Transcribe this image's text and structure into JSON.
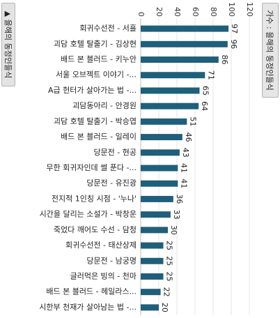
{
  "chart_data": {
    "type": "bar",
    "orientation": "horizontal",
    "xlabel_tab": "▲ 을해의 동정인들식",
    "legend_text": "가수 : 을해의 동정인들식",
    "xlim": [
      0,
      120
    ],
    "ticks": [
      0,
      20,
      40,
      60,
      80,
      100,
      120
    ],
    "grid": true,
    "bar_color": "#1f5f7a",
    "categories": [
      "회귀수선전 - 서흘",
      "괴담 호텔 탈출기 - 김상현",
      "배드 본 블러드 - 키누안",
      "서울 오브젝트 이야기 -...",
      "A급 헌터가 살아가는 법 -...",
      "괴담동아리 - 안경원",
      "괴담 호텔 탈출기 - 박승엽",
      "배드 본 블러드 - 일레이",
      "당문전 - 현공",
      "무한 회귀자인데 썰 푼다 -...",
      "당문전 - 유진광",
      "전지적 1인칭 시점 - '누나'",
      "시간을 달리는 소설가 - 박창운",
      "죽었다 깨어도 수선 - 담청",
      "회귀수선전 - 태산상제",
      "당문전 - 남궁명",
      "글러먹은 빙의 - 천마",
      "배드 본 블러드 - 헤일라스...",
      "시한부 천재가 살아남는 법 -..."
    ],
    "values": [
      97,
      96,
      86,
      71,
      65,
      64,
      51,
      46,
      43,
      41,
      41,
      36,
      33,
      30,
      25,
      25,
      25,
      22,
      20
    ]
  }
}
